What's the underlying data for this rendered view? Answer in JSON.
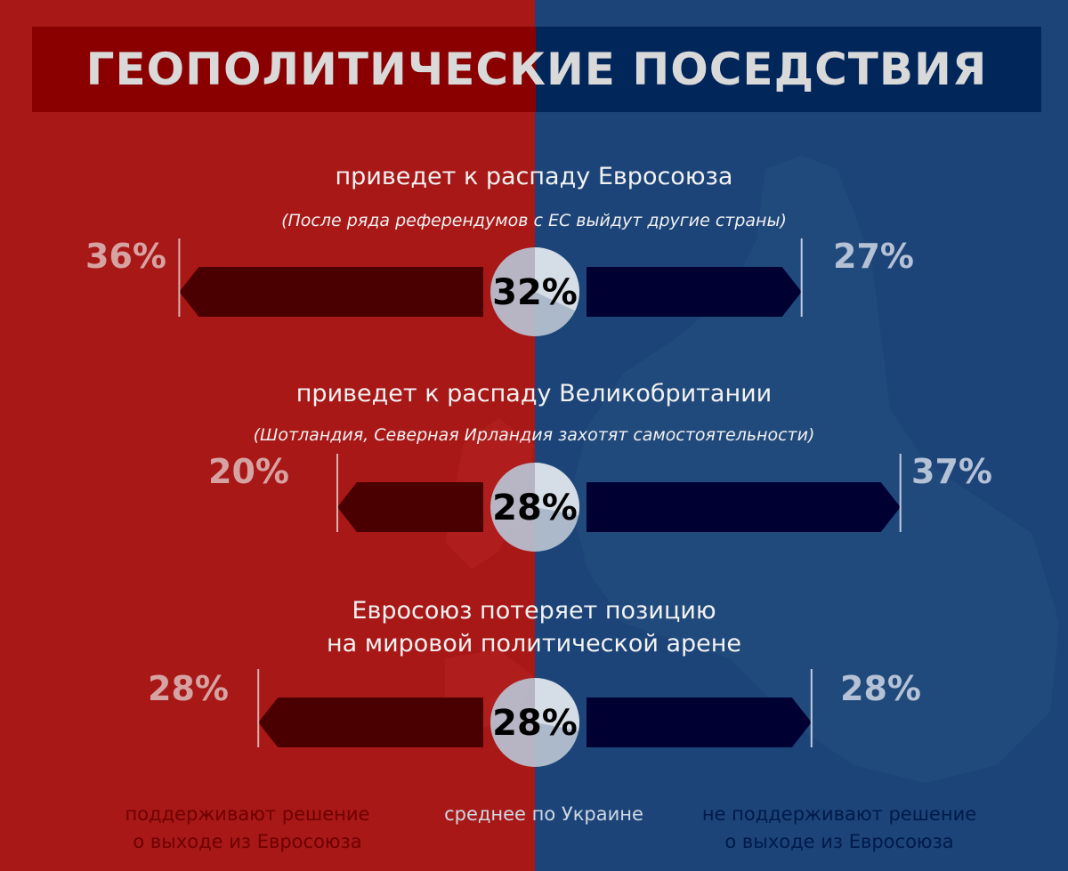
{
  "title": "ГЕОПОЛИТИЧЕСКИЕ ПОСЕДСТВИЯ",
  "colors": {
    "left_bg": "#a81817",
    "right_bg": "#1c4478",
    "left_arrow": "#4a0000",
    "right_arrow": "#000033",
    "circle": "#b8c3d3"
  },
  "chart_data": {
    "type": "bar",
    "title": "ГЕОПОЛИТИЧЕСКИЕ ПОСЕДСТВИЯ",
    "series": [
      {
        "name": "поддерживают решение о выходе из Евросоюза",
        "values": [
          36,
          20,
          28
        ]
      },
      {
        "name": "среднее по Украине",
        "values": [
          32,
          28,
          28
        ]
      },
      {
        "name": "не поддерживают решение о выходе из Евросоюза",
        "values": [
          27,
          37,
          28
        ]
      }
    ],
    "categories": [
      "приведет к распаду Евросоюза",
      "приведет к распаду Великобритании",
      "Евросоюз потеряет позицию на мировой политической арене"
    ],
    "rows": [
      {
        "title_lines": [
          "приведет к распаду Евросоюза"
        ],
        "subtitle": "(После ряда референдумов с ЕС выйдут другие страны)",
        "support": 36,
        "support_label": "36%",
        "average": 32,
        "average_label": "32%",
        "oppose": 27,
        "oppose_label": "27%"
      },
      {
        "title_lines": [
          "приведет к распаду Великобритании"
        ],
        "subtitle": "(Шотландия, Северная Ирландия захотят самостоятельности)",
        "support": 20,
        "support_label": "20%",
        "average": 28,
        "average_label": "28%",
        "oppose": 37,
        "oppose_label": "37%"
      },
      {
        "title_lines": [
          "Евросоюз потеряет позицию",
          "на мировой политической арене"
        ],
        "subtitle": "",
        "support": 28,
        "support_label": "28%",
        "average": 28,
        "average_label": "28%",
        "oppose": 28,
        "oppose_label": "28%"
      }
    ],
    "legend": {
      "left": [
        "поддерживают решение",
        "о выходе из Евросоюза"
      ],
      "middle": "среднее по Украине",
      "right": [
        "не поддерживают решение",
        "о выходе из Евросоюза"
      ]
    }
  }
}
